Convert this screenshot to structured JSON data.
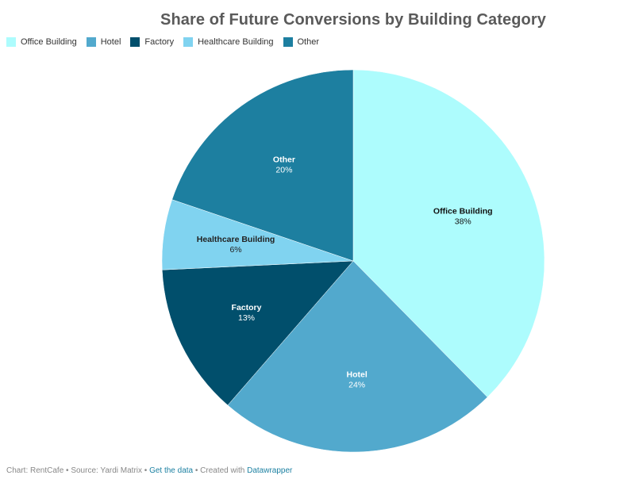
{
  "chart_data": {
    "type": "pie",
    "title": "Share of Future Conversions by Building Category",
    "categories": [
      "Office Building",
      "Hotel",
      "Factory",
      "Healthcare Building",
      "Other"
    ],
    "values": [
      38,
      24,
      13,
      6,
      20
    ],
    "value_labels": [
      "38%",
      "24%",
      "13%",
      "6%",
      "20%"
    ],
    "colors": [
      "#adfcfd",
      "#52a9cd",
      "#014f6c",
      "#80d3f0",
      "#1d7fa0"
    ],
    "label_colors": [
      "#111111",
      "#ffffff",
      "#ffffff",
      "#222222",
      "#ffffff"
    ],
    "legend_position": "top-left",
    "start_angle_deg": 0,
    "direction": "clockwise"
  },
  "footer": {
    "chart_text": "Chart: RentCafe",
    "sep1": " • ",
    "source_text": "Source: Yardi Matrix",
    "sep2": " • ",
    "get_data": "Get the data",
    "sep3": " • ",
    "created_text": "Created with ",
    "datawrapper": "Datawrapper"
  }
}
